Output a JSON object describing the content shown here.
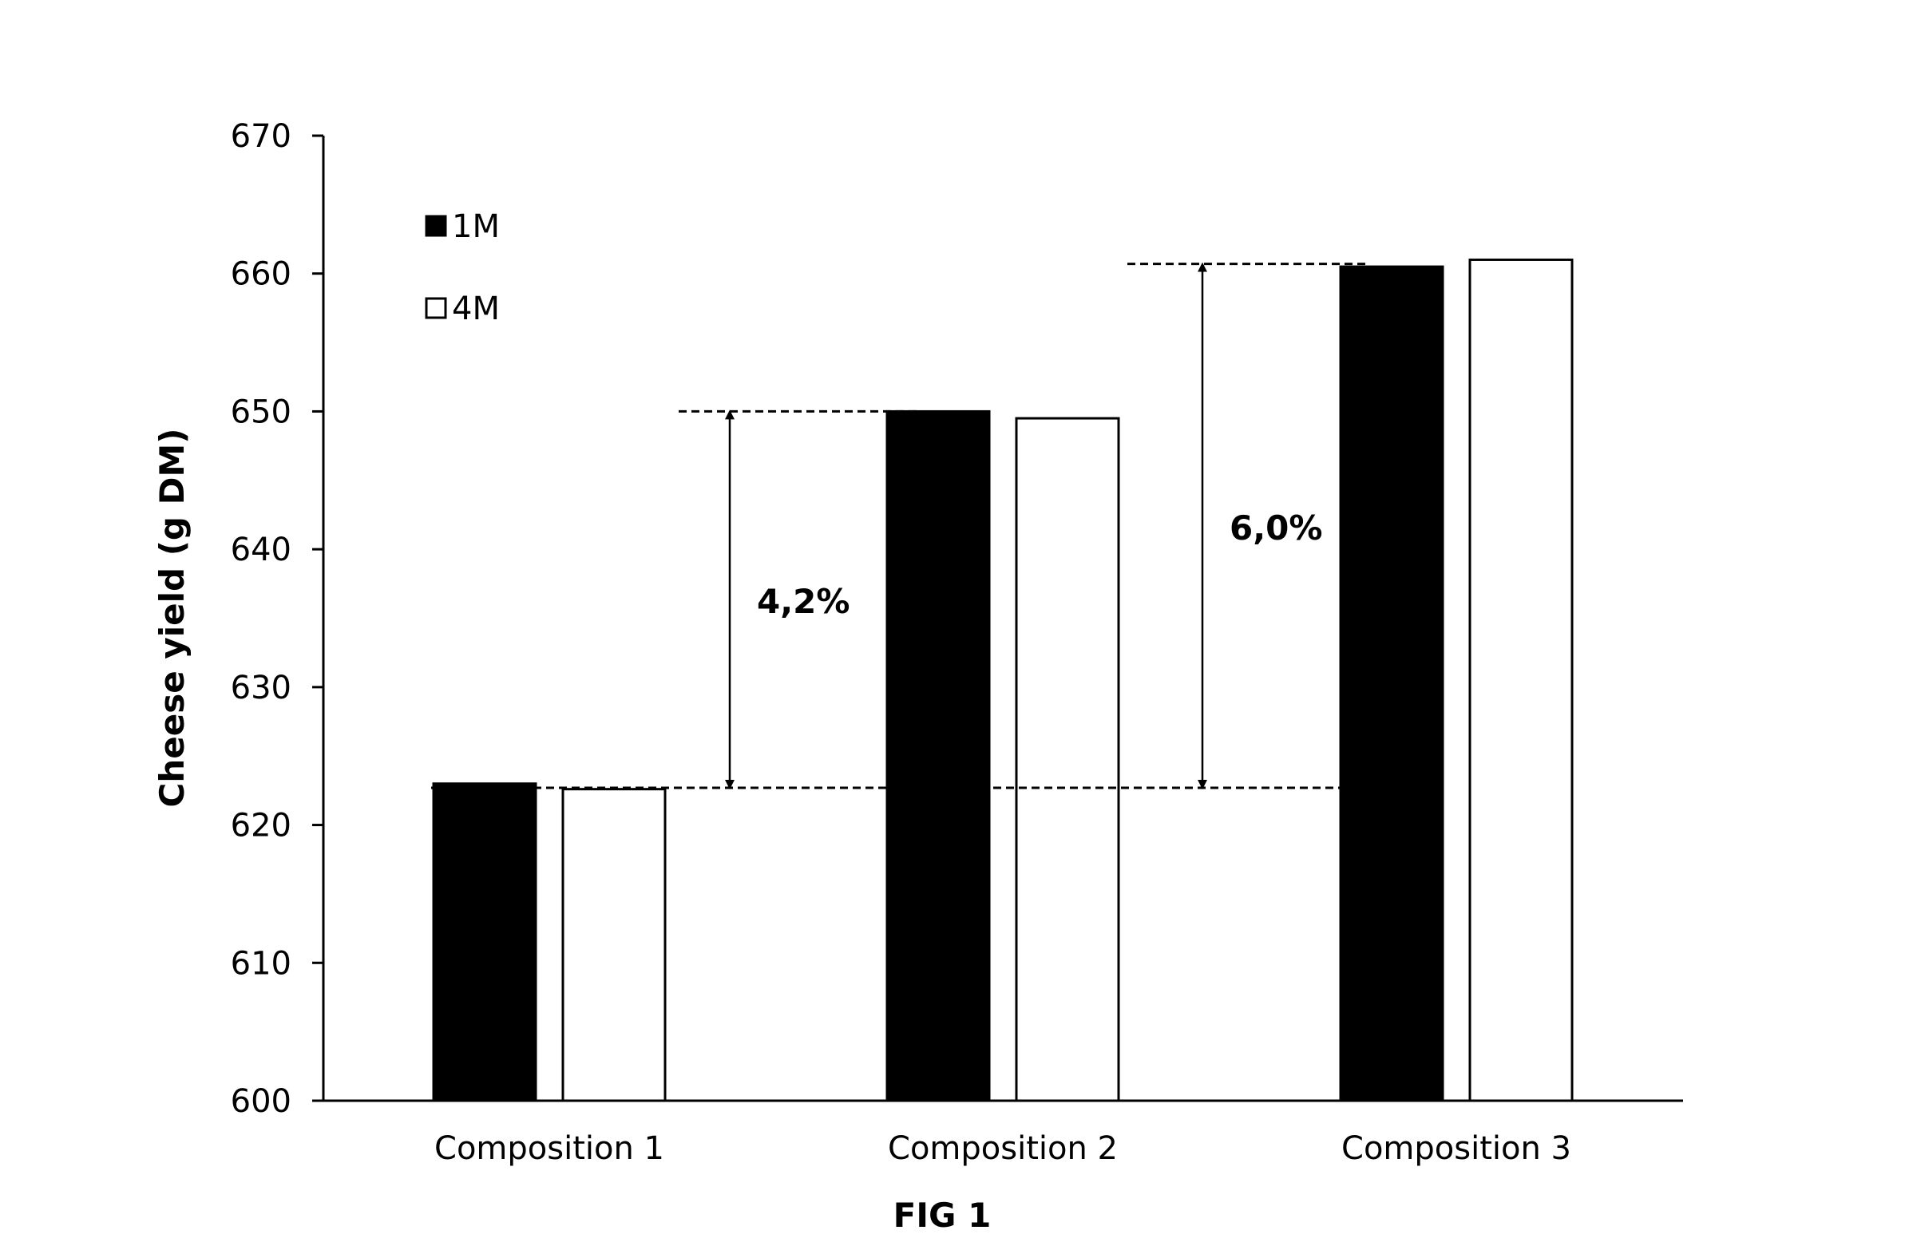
{
  "chart_data": {
    "type": "bar",
    "categories": [
      "Composition 1",
      "Composition 2",
      "Composition 3"
    ],
    "series": [
      {
        "name": "1M",
        "values": [
          623.0,
          650.0,
          660.5
        ],
        "fill": "#000000"
      },
      {
        "name": "4M",
        "values": [
          622.6,
          649.5,
          661.0
        ],
        "fill": "#ffffff"
      }
    ],
    "ylabel": "Cheese yield (g DM)",
    "xlabel": "",
    "ylim": [
      600,
      670
    ],
    "yticks": [
      600,
      610,
      620,
      630,
      640,
      650,
      660,
      670
    ],
    "grid": false,
    "legend_position": "top-left",
    "caption": "FIG 1",
    "baseline": 622.7,
    "annotations": [
      {
        "label": "4,2%",
        "from": 622.7,
        "to": 650.0,
        "between": [
          "Composition 1",
          "Composition 2"
        ]
      },
      {
        "label": "6,0%",
        "from": 622.7,
        "to": 660.7,
        "between": [
          "Composition 2",
          "Composition 3"
        ]
      }
    ]
  }
}
